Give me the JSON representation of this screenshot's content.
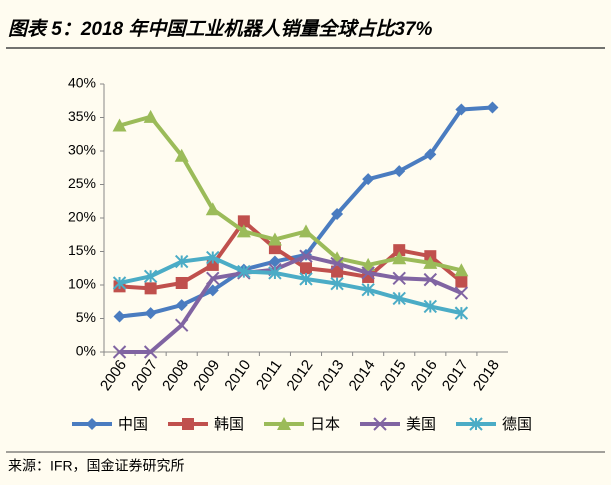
{
  "chart_data": {
    "type": "line",
    "title": "图表 5：2018 年中国工业机器人销量全球占比37%",
    "source": "来源：IFR，国金证券研究所",
    "categories": [
      "2006",
      "2007",
      "2008",
      "2009",
      "2010",
      "2011",
      "2012",
      "2013",
      "2014",
      "2015",
      "2016",
      "2017",
      "2018"
    ],
    "series": [
      {
        "name": "中国",
        "color": "#4a7cc0",
        "marker": "diamond",
        "values": [
          5.3,
          5.8,
          7,
          9.2,
          12.3,
          13.5,
          14.5,
          20.6,
          25.8,
          27,
          29.5,
          36.2,
          36.5
        ]
      },
      {
        "name": "韩国",
        "color": "#c0504d",
        "marker": "square",
        "values": [
          9.8,
          9.5,
          10.3,
          13,
          19.5,
          15.5,
          12.5,
          12,
          11.2,
          15.2,
          14.3,
          10.5,
          null
        ]
      },
      {
        "name": "日本",
        "color": "#9bbb59",
        "marker": "triangle",
        "values": [
          33.8,
          35.1,
          29.3,
          21.3,
          18,
          16.8,
          18,
          14,
          13,
          14,
          13.3,
          12.2,
          null
        ]
      },
      {
        "name": "美国",
        "color": "#8064a2",
        "marker": "x",
        "values": [
          0,
          0,
          4,
          11,
          11.8,
          12.3,
          14.3,
          13.2,
          11.8,
          11,
          10.8,
          8.8,
          null
        ]
      },
      {
        "name": "德国",
        "color": "#4bacc6",
        "marker": "star",
        "values": [
          10.3,
          11.3,
          13.5,
          14.1,
          12,
          11.8,
          10.9,
          10.2,
          9.3,
          8,
          6.8,
          5.8,
          null
        ]
      }
    ],
    "ylim": [
      0,
      40
    ],
    "yticks": [
      {
        "value": 0,
        "label": "0%"
      },
      {
        "value": 5,
        "label": "5%"
      },
      {
        "value": 10,
        "label": "10%"
      },
      {
        "value": 15,
        "label": "15%"
      },
      {
        "value": 20,
        "label": "20%"
      },
      {
        "value": 25,
        "label": "25%"
      },
      {
        "value": 30,
        "label": "30%"
      },
      {
        "value": 35,
        "label": "35%"
      },
      {
        "value": 40,
        "label": "40%"
      }
    ],
    "legend": "bottom"
  }
}
